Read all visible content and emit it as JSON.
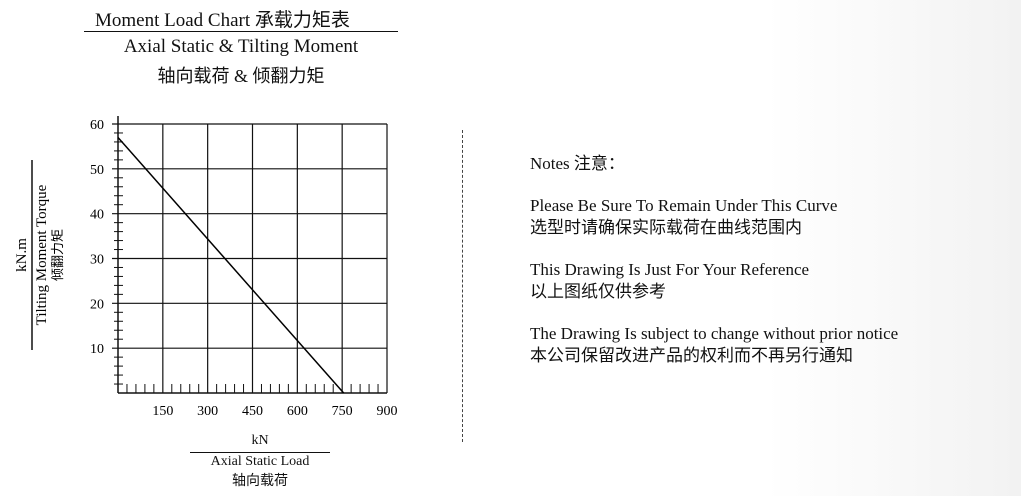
{
  "header": {
    "title": "Moment Load Chart  承载力矩表",
    "subtitle_en": "Axial Static & Tilting Moment",
    "subtitle_cn": "轴向载荷  &  倾翻力矩"
  },
  "chart_data": {
    "type": "line",
    "title": "Moment Load Chart  承载力矩表",
    "xlabel": {
      "unit": "kN",
      "en": "Axial Static Load",
      "cn": "轴向载荷"
    },
    "ylabel": {
      "unit": "kN.m",
      "en": "Tilting Moment Torque",
      "cn": "倾翻力矩"
    },
    "xlim": [
      0,
      900
    ],
    "ylim": [
      0,
      60
    ],
    "xticks": [
      150,
      300,
      450,
      600,
      750,
      900
    ],
    "yticks": [
      10,
      20,
      30,
      40,
      50,
      60
    ],
    "grid": true,
    "series": [
      {
        "x": [
          0,
          755
        ],
        "y": [
          57,
          0
        ]
      }
    ],
    "line_color": "#000000"
  },
  "notes": {
    "heading": "Notes 注意：",
    "items": [
      {
        "en": "Please Be Sure To Remain Under This Curve",
        "cn": "选型时请确保实际载荷在曲线范围内"
      },
      {
        "en": "This Drawing Is Just For Your Reference",
        "cn": "以上图纸仅供参考"
      },
      {
        "en": "The Drawing Is subject to change without prior notice",
        "cn": "本公司保留改进产品的权利而不再另行通知"
      }
    ]
  }
}
